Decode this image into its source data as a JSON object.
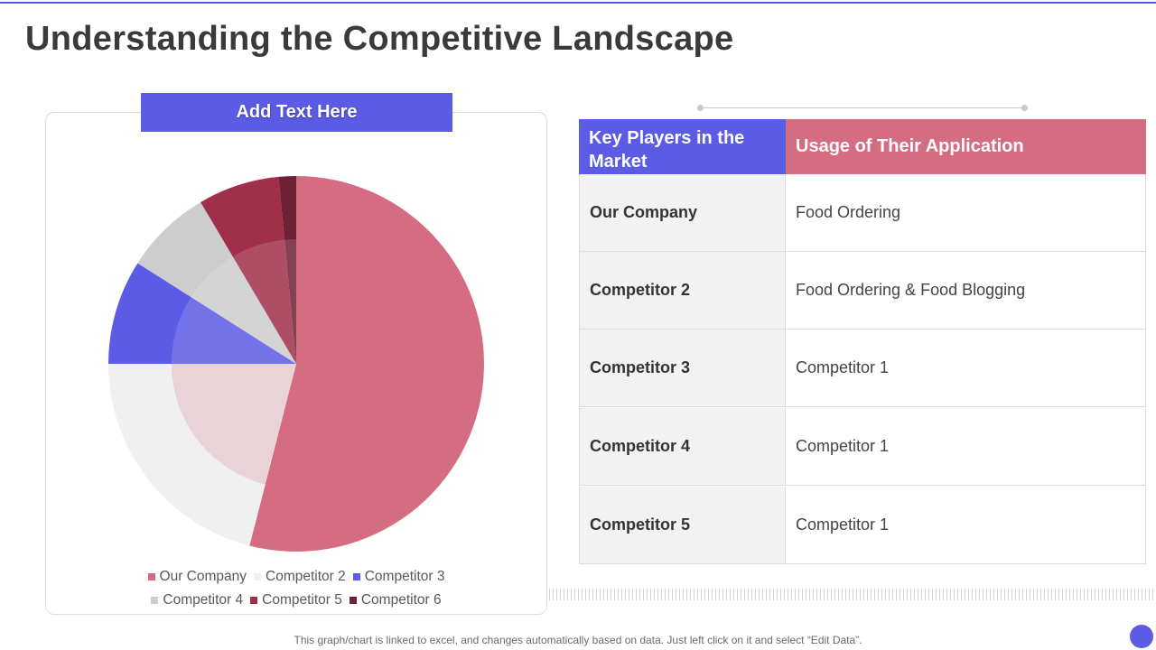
{
  "page": {
    "title": "Understanding the Competitive Landscape",
    "footnote": "This graph/chart is linked to excel, and changes automatically based on data. Just left click on it and select “Edit Data”."
  },
  "chart_header": "Add Text Here",
  "chart_data": {
    "type": "pie",
    "categories": [
      "Our Company",
      "Competitor 2",
      "Competitor 3",
      "Competitor 4",
      "Competitor 5",
      "Competitor 6"
    ],
    "values": [
      54,
      21,
      9,
      7.5,
      7,
      1.5
    ],
    "colors": [
      "#d46d82",
      "#f0f0f0",
      "#5b5be6",
      "#cdcdcd",
      "#a0304a",
      "#6e2035"
    ],
    "legend_position": "bottom",
    "title": ""
  },
  "table": {
    "headers": [
      "Key Players in the Market",
      "Usage of Their Application"
    ],
    "rows": [
      [
        "Our Company",
        "Food Ordering"
      ],
      [
        "Competitor 2",
        "Food Ordering & Food Blogging"
      ],
      [
        "Competitor 3",
        "Competitor 1"
      ],
      [
        "Competitor 4",
        "Competitor 1"
      ],
      [
        "Competitor 5",
        "Competitor 1"
      ]
    ],
    "colors": {
      "left_header": "#5b5be6",
      "right_header": "#d46d82"
    }
  }
}
